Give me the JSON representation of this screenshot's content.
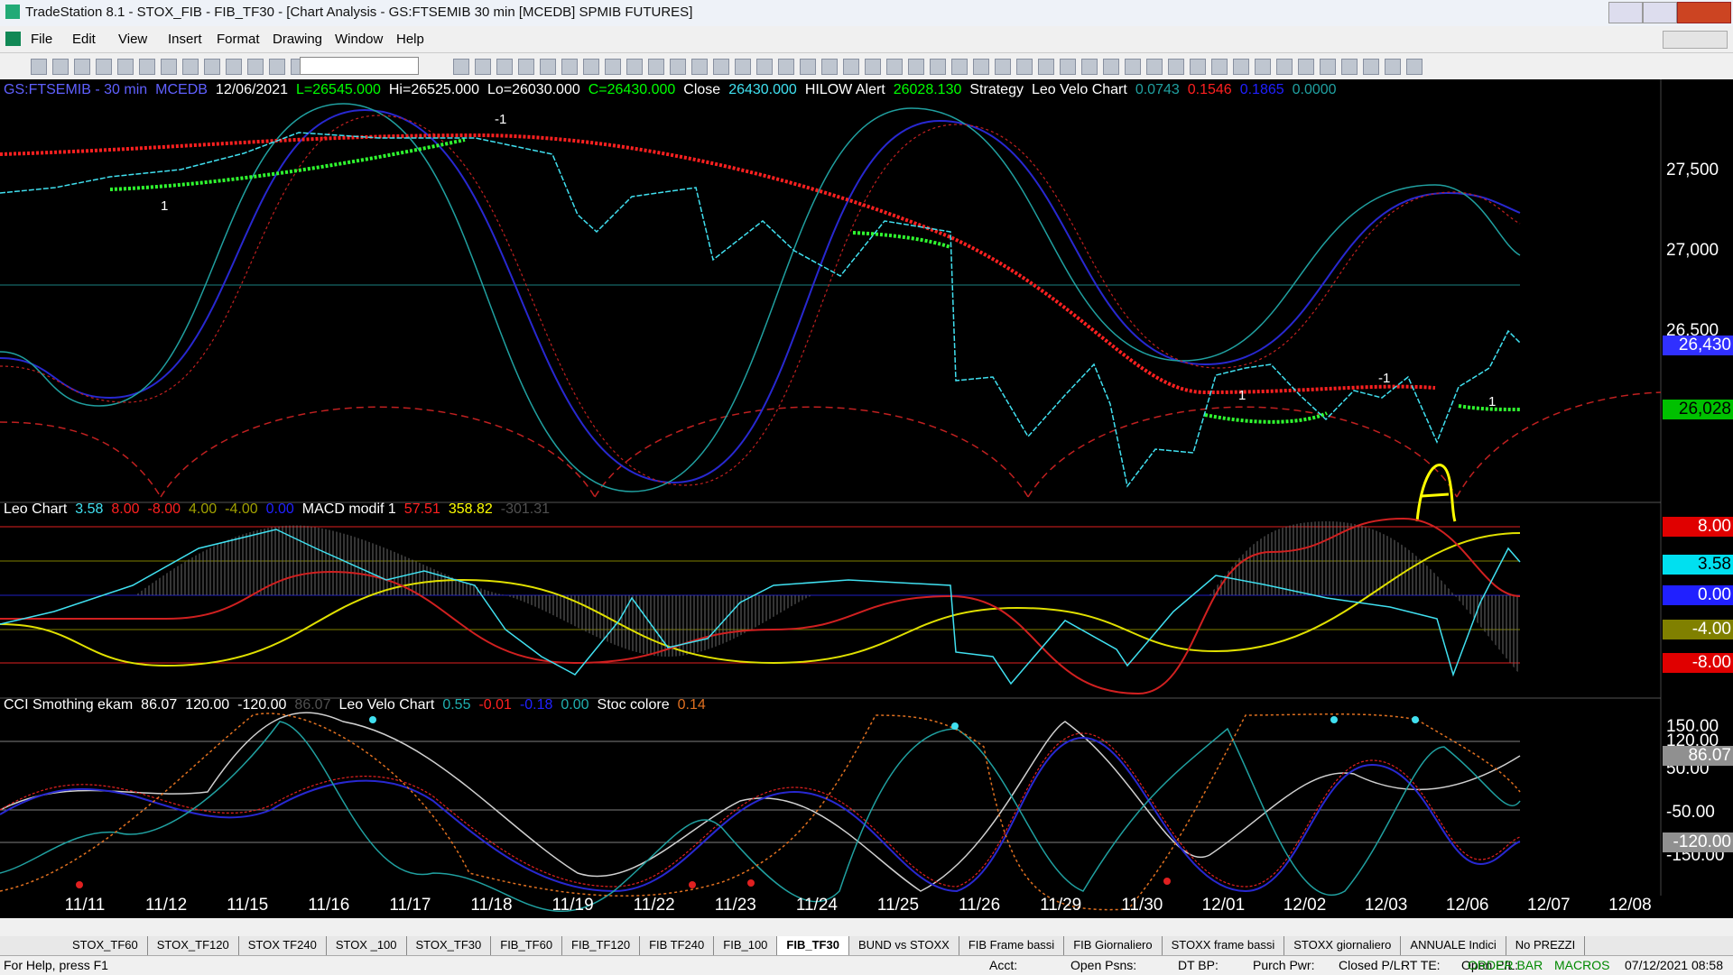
{
  "window_title": "TradeStation 8.1 - STOX_FIB - FIB_TF30 - [Chart Analysis - GS:FTSEMIB  30 min  [MCEDB] SPMIB FUTURES]",
  "menu": [
    "File",
    "Edit",
    "View",
    "Insert",
    "Format",
    "Drawing",
    "Window",
    "Help"
  ],
  "price_panel": {
    "legend": [
      {
        "text": "GS:FTSEMIB - 30 min",
        "color": "#6060ff"
      },
      {
        "text": "MCEDB",
        "color": "#6060ff"
      },
      {
        "text": "12/06/2021",
        "color": "#ffffff"
      },
      {
        "text": "L=26545.000",
        "color": "#00ff00"
      },
      {
        "text": "Hi=26525.000",
        "color": "#ffffff"
      },
      {
        "text": "Lo=26030.000",
        "color": "#ffffff"
      },
      {
        "text": "C=26430.000",
        "color": "#00ff00"
      },
      {
        "text": "Close",
        "color": "#ffffff"
      },
      {
        "text": "26430.000",
        "color": "#40e0f0"
      },
      {
        "text": "HILOW Alert",
        "color": "#ffffff"
      },
      {
        "text": "26028.130",
        "color": "#00ff00"
      },
      {
        "text": "Strategy",
        "color": "#ffffff"
      },
      {
        "text": "Leo Velo Chart",
        "color": "#ffffff"
      },
      {
        "text": "0.0743",
        "color": "#20a0a0"
      },
      {
        "text": "0.1546",
        "color": "#ff2020"
      },
      {
        "text": "0.1865",
        "color": "#2020ff"
      },
      {
        "text": "0.0000",
        "color": "#20a0a0"
      }
    ],
    "axis_labels": [
      "27,500",
      "27,000",
      "26,500"
    ],
    "value_boxes": [
      {
        "text": "26,430",
        "bg": "#3030ff",
        "color": "#ffffff"
      },
      {
        "text": "26,028",
        "bg": "#00c000",
        "color": "#000000"
      }
    ],
    "annotations": [
      "-1",
      "1",
      "1",
      "-1",
      "1"
    ]
  },
  "indicator_panel": {
    "legend": [
      {
        "text": "Leo Chart",
        "color": "#ffffff"
      },
      {
        "text": "3.58",
        "color": "#40e0f0"
      },
      {
        "text": "8.00",
        "color": "#ff2020"
      },
      {
        "text": "-8.00",
        "color": "#ff2020"
      },
      {
        "text": "4.00",
        "color": "#a0a000"
      },
      {
        "text": "-4.00",
        "color": "#a0a000"
      },
      {
        "text": "0.00",
        "color": "#2020ff"
      },
      {
        "text": "MACD modif 1",
        "color": "#ffffff"
      },
      {
        "text": "57.51",
        "color": "#ff2020"
      },
      {
        "text": "358.82",
        "color": "#ffff00"
      },
      {
        "text": "-301.31",
        "color": "#505050"
      }
    ],
    "value_boxes": [
      {
        "text": "8.00",
        "bg": "#e00000",
        "color": "#ffffff"
      },
      {
        "text": "3.58",
        "bg": "#00e0f0",
        "color": "#000000"
      },
      {
        "text": "0.00",
        "bg": "#2020ff",
        "color": "#ffffff"
      },
      {
        "text": "-4.00",
        "bg": "#808000",
        "color": "#ffffff"
      },
      {
        "text": "-8.00",
        "bg": "#e00000",
        "color": "#ffffff"
      }
    ]
  },
  "oscillator_panel": {
    "legend": [
      {
        "text": "CCI Smothing ekam",
        "color": "#ffffff"
      },
      {
        "text": "86.07",
        "color": "#ffffff"
      },
      {
        "text": "120.00",
        "color": "#ffffff"
      },
      {
        "text": "-120.00",
        "color": "#ffffff"
      },
      {
        "text": "86.07",
        "color": "#505050"
      },
      {
        "text": "Leo Velo Chart",
        "color": "#ffffff"
      },
      {
        "text": "0.55",
        "color": "#20b0b0"
      },
      {
        "text": "-0.01",
        "color": "#ff2020"
      },
      {
        "text": "-0.18",
        "color": "#2020ff"
      },
      {
        "text": "0.00",
        "color": "#20b0b0"
      },
      {
        "text": "Stoc colore",
        "color": "#ffffff"
      },
      {
        "text": "0.14",
        "color": "#e07020"
      }
    ],
    "axis_labels": [
      "150.00",
      "120.00",
      "50.00",
      "-50.00",
      "-150.00"
    ],
    "value_boxes": [
      {
        "text": "86.07",
        "bg": "#909090",
        "color": "#ffffff"
      },
      {
        "text": "-120.00",
        "bg": "#909090",
        "color": "#ffffff"
      }
    ]
  },
  "dates": [
    "11/11",
    "11/12",
    "11/15",
    "11/16",
    "11/17",
    "11/18",
    "11/19",
    "11/22",
    "11/23",
    "11/24",
    "11/25",
    "11/26",
    "11/29",
    "11/30",
    "12/01",
    "12/02",
    "12/03",
    "12/06",
    "12/07",
    "12/08"
  ],
  "tabs": [
    {
      "text": "STOX_TF60"
    },
    {
      "text": "STOX_TF120"
    },
    {
      "text": "STOX TF240"
    },
    {
      "text": "STOX _100"
    },
    {
      "text": "STOX_TF30"
    },
    {
      "text": "FIB_TF60"
    },
    {
      "text": "FIB_TF120"
    },
    {
      "text": "FIB TF240"
    },
    {
      "text": "FIB_100"
    },
    {
      "text": "FIB_TF30",
      "active": true
    },
    {
      "text": "BUND vs STOXX"
    },
    {
      "text": "FIB Frame bassi"
    },
    {
      "text": "FIB Giornaliero"
    },
    {
      "text": "STOXX frame bassi"
    },
    {
      "text": "STOXX giornaliero"
    },
    {
      "text": "ANNUALE Indici"
    },
    {
      "text": "No PREZZI"
    }
  ],
  "status_bar": {
    "help": "For Help, press F1",
    "fields": [
      "Acct:",
      "Open Psns:",
      "DT BP:",
      "Purch Pwr:",
      "Closed P/L:",
      "RT TE:",
      "Open P/L:"
    ],
    "order_bar": "ORDER BAR",
    "macros": "MACROS",
    "datetime": "07/12/2021 08:58"
  }
}
